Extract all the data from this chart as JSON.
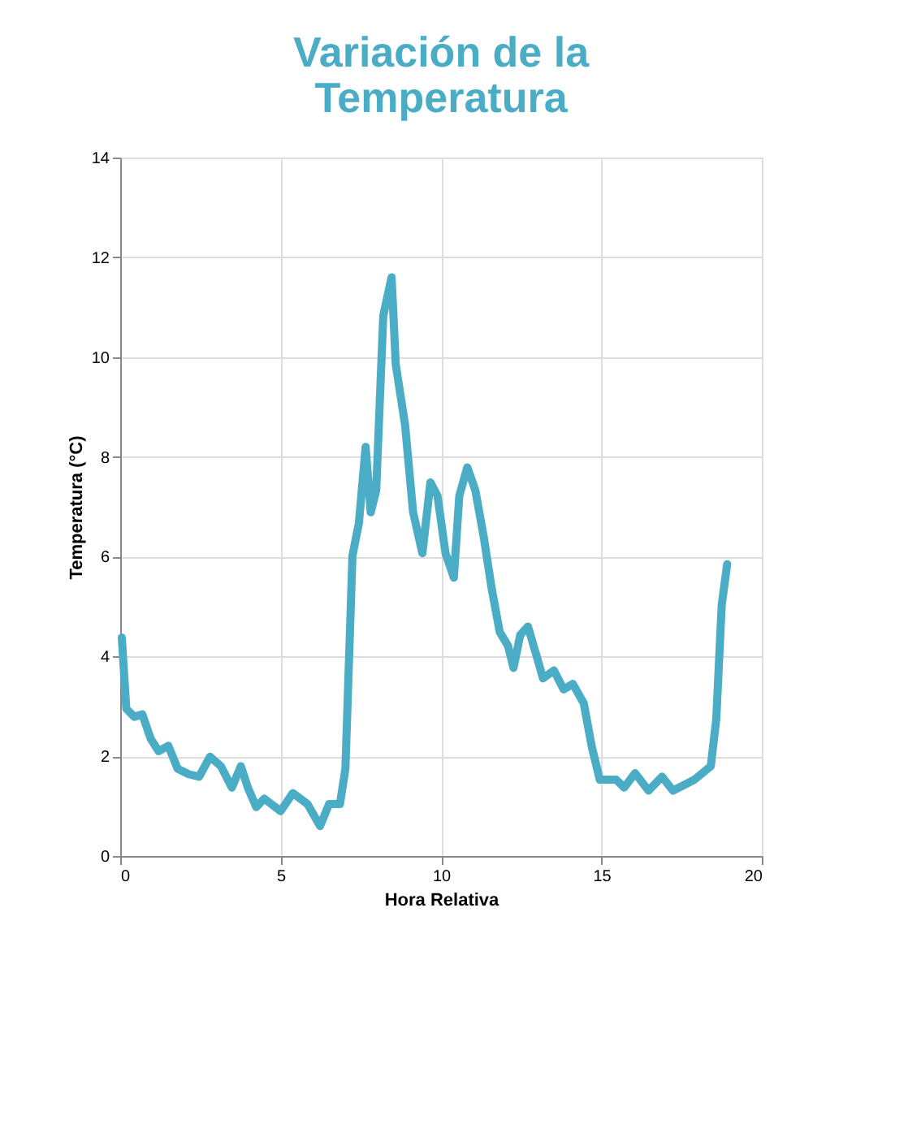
{
  "chart_data": {
    "type": "line",
    "title": "Variación de la Temperatura",
    "xlabel": "Hora Relativa",
    "ylabel": "Temperatura (°C)",
    "x": [
      0.05,
      0.19,
      0.44,
      0.69,
      0.95,
      1.2,
      1.5,
      1.79,
      2.13,
      2.46,
      2.8,
      3.14,
      3.48,
      3.76,
      3.98,
      4.24,
      4.49,
      5.0,
      5.38,
      5.84,
      6.23,
      6.51,
      6.85,
      7.02,
      7.24,
      7.44,
      7.65,
      7.81,
      7.98,
      8.2,
      8.46,
      8.59,
      8.88,
      9.13,
      9.42,
      9.67,
      9.89,
      10.14,
      10.4,
      10.57,
      10.82,
      11.07,
      11.33,
      11.58,
      11.83,
      12.09,
      12.26,
      12.47,
      12.71,
      13.01,
      13.18,
      13.52,
      13.82,
      14.11,
      14.45,
      14.7,
      14.95,
      15.46,
      15.71,
      16.05,
      16.47,
      16.89,
      17.23,
      17.57,
      17.9,
      18.41,
      18.58,
      18.75,
      18.92
    ],
    "series": [
      {
        "color": "#4bacc6",
        "values": [
          4.38,
          2.95,
          2.79,
          2.84,
          2.35,
          2.1,
          2.21,
          1.75,
          1.64,
          1.59,
          1.99,
          1.8,
          1.37,
          1.8,
          1.37,
          0.98,
          1.15,
          0.9,
          1.26,
          1.04,
          0.6,
          1.04,
          1.04,
          1.75,
          6.02,
          6.67,
          8.2,
          6.89,
          7.33,
          10.83,
          11.6,
          9.85,
          8.64,
          6.89,
          6.07,
          7.49,
          7.22,
          6.07,
          5.58,
          7.22,
          7.79,
          7.33,
          6.4,
          5.36,
          4.49,
          4.21,
          3.77,
          4.43,
          4.6,
          3.94,
          3.56,
          3.72,
          3.34,
          3.45,
          3.06,
          2.19,
          1.53,
          1.53,
          1.37,
          1.66,
          1.31,
          1.59,
          1.31,
          1.42,
          1.53,
          1.8,
          2.74,
          5.03,
          5.85
        ]
      }
    ],
    "xlim": [
      0,
      20
    ],
    "xticks": [
      0,
      5,
      10,
      15,
      20
    ],
    "ylim": [
      0,
      14
    ],
    "yticks": [
      0,
      2,
      4,
      6,
      8,
      10,
      12,
      14
    ],
    "grid": true,
    "marker": "none",
    "line_style": "solid"
  }
}
